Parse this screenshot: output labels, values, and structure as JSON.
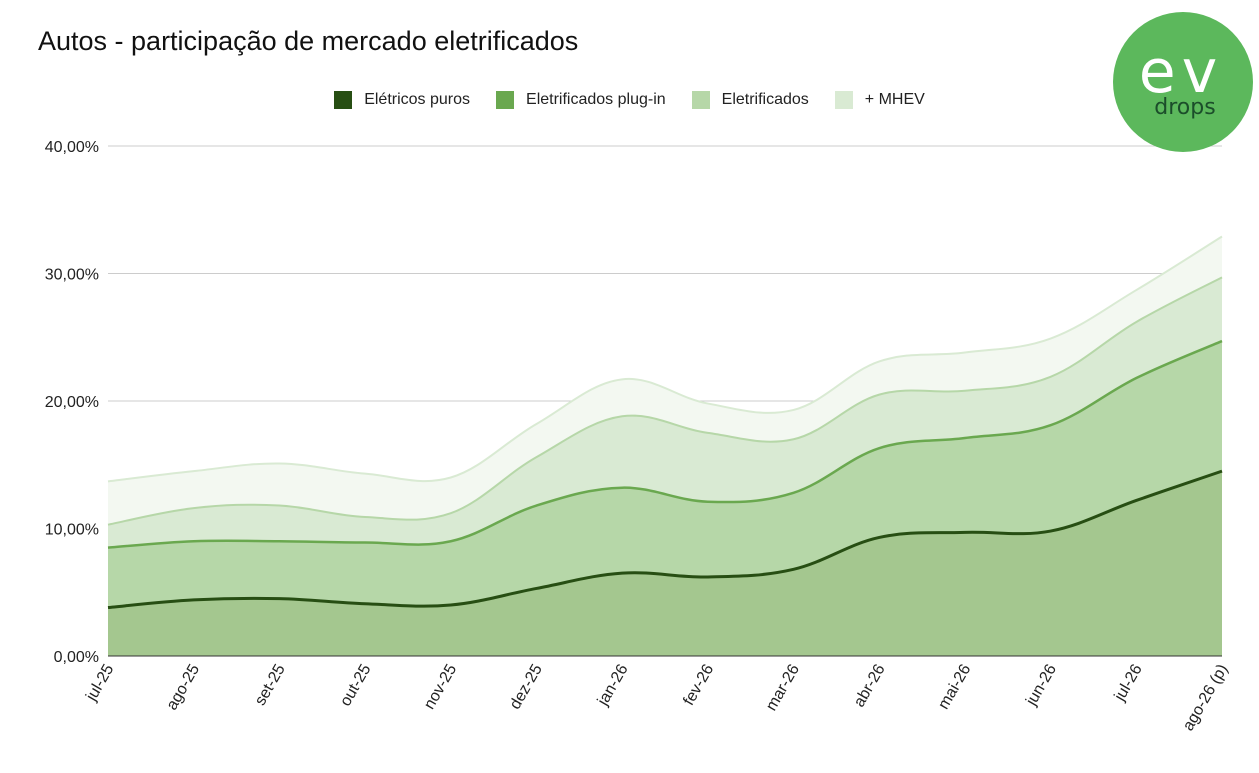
{
  "chart_data": {
    "type": "area",
    "title": "Autos - participação de mercado eletrificados",
    "stacked": false,
    "categories": [
      "jul-25",
      "ago-25",
      "set-25",
      "out-25",
      "nov-25",
      "dez-25",
      "jan-26",
      "fev-26",
      "mar-26",
      "abr-26",
      "mai-26",
      "jun-26",
      "jul-26",
      "ago-26 (p)"
    ],
    "y_ticks": [
      "0,00%",
      "10,00%",
      "20,00%",
      "30,00%",
      "40,00%"
    ],
    "ylim": [
      0,
      40
    ],
    "grid": true,
    "legend_position": "top",
    "series": [
      {
        "name": "+ MHEV",
        "color": "#d9ead3",
        "values": [
          13.7,
          14.5,
          15.1,
          14.3,
          14.0,
          18.2,
          21.7,
          19.8,
          19.3,
          23.1,
          23.8,
          24.9,
          28.7,
          32.9
        ]
      },
      {
        "name": "Eletrificados",
        "color": "#b6d7a8",
        "values": [
          10.3,
          11.6,
          11.8,
          10.9,
          11.2,
          15.6,
          18.8,
          17.5,
          17.0,
          20.5,
          20.8,
          21.9,
          26.2,
          29.7
        ]
      },
      {
        "name": "Eletrificados plug-in",
        "color": "#6aa84f",
        "values": [
          8.5,
          9.0,
          9.0,
          8.9,
          9.0,
          11.8,
          13.2,
          12.1,
          12.8,
          16.3,
          17.1,
          18.1,
          21.8,
          24.7
        ]
      },
      {
        "name": "Elétricos puros",
        "color": "#274e13",
        "values": [
          3.8,
          4.4,
          4.5,
          4.1,
          4.0,
          5.3,
          6.5,
          6.2,
          6.8,
          9.3,
          9.7,
          9.8,
          12.2,
          14.5
        ]
      }
    ],
    "legend_order": [
      "Elétricos puros",
      "Eletrificados plug-in",
      "Eletrificados",
      "+ MHEV"
    ]
  },
  "logo": {
    "top_text": "ev",
    "bottom_text": "drops",
    "color": "#5cb85c"
  }
}
